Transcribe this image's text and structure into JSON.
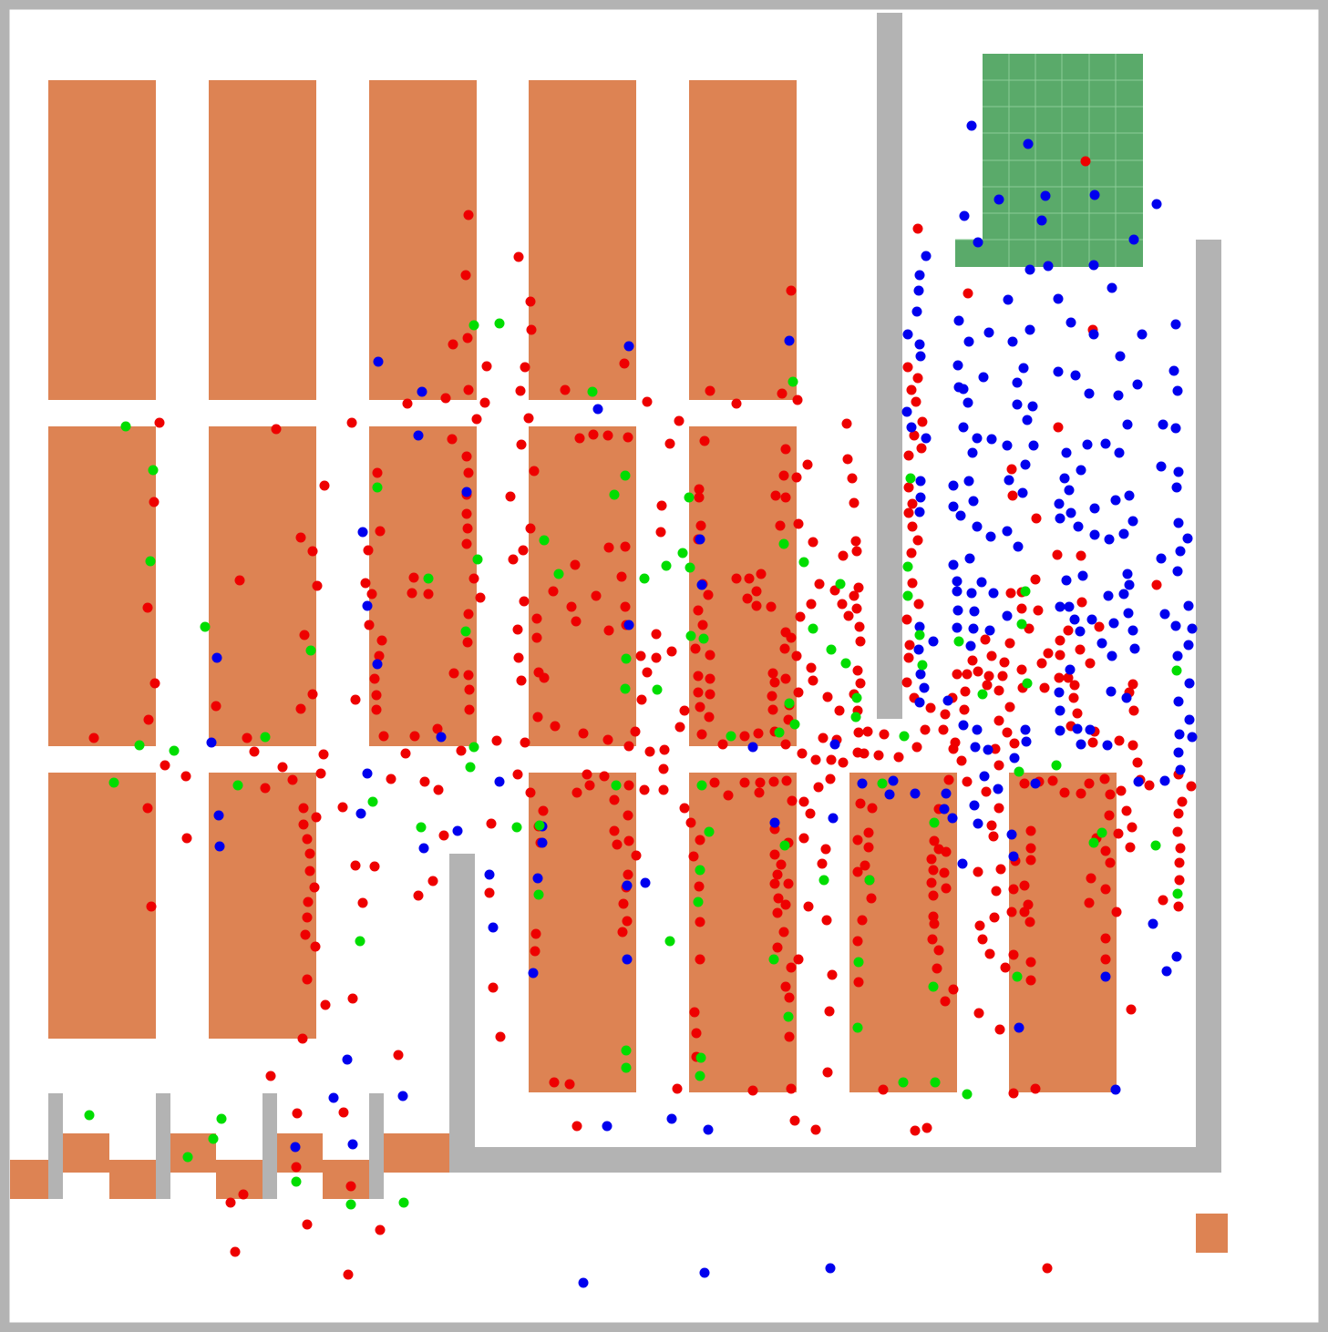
{
  "colors": {
    "floor": "#ffffff",
    "wall": "#b3b3b3",
    "shelf": "#dd8353",
    "goal_zone": "#5aaa6a",
    "goal_grid": "#8ccc98",
    "agent_red": "#ee0000",
    "agent_blue": "#0000ee",
    "agent_green": "#00dd00"
  },
  "legend": []
}
